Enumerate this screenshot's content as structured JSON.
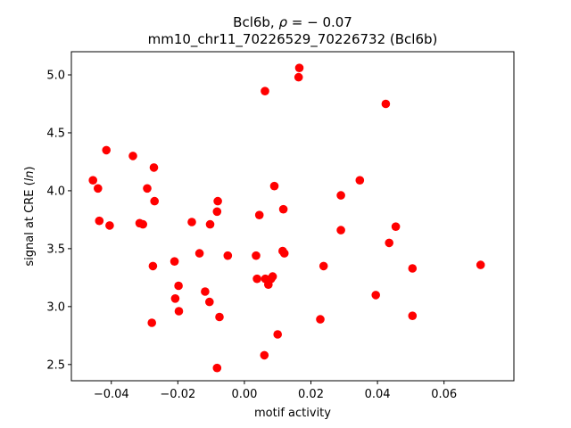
{
  "chart_data": {
    "type": "scatter",
    "title_line1_prefix": "Bcl6b, ",
    "title_line1_rho": "ρ",
    "title_line1_suffix": " = − 0.07",
    "title_line2": "mm10_chr11_70226529_70226732 (Bcl6b)",
    "xlabel": "motif activity",
    "ylabel_prefix": "signal at CRE (",
    "ylabel_italic": "ln",
    "ylabel_suffix": ")",
    "xlim": [
      -0.052,
      0.081
    ],
    "ylim": [
      2.36,
      5.2
    ],
    "x_ticks": [
      {
        "value": -0.04,
        "label": "−0.04"
      },
      {
        "value": -0.02,
        "label": "−0.02"
      },
      {
        "value": 0.0,
        "label": "0.00"
      },
      {
        "value": 0.02,
        "label": "0.02"
      },
      {
        "value": 0.04,
        "label": "0.04"
      },
      {
        "value": 0.06,
        "label": "0.06"
      }
    ],
    "y_ticks": [
      {
        "value": 2.5,
        "label": "2.5"
      },
      {
        "value": 3.0,
        "label": "3.0"
      },
      {
        "value": 3.5,
        "label": "3.5"
      },
      {
        "value": 4.0,
        "label": "4.0"
      },
      {
        "value": 4.5,
        "label": "4.5"
      },
      {
        "value": 5.0,
        "label": "5.0"
      }
    ],
    "grid": false,
    "marker_color": "#ff0000",
    "points": [
      {
        "x": -0.0455,
        "y": 4.09
      },
      {
        "x": -0.044,
        "y": 4.02
      },
      {
        "x": -0.0436,
        "y": 3.74
      },
      {
        "x": -0.0415,
        "y": 4.35
      },
      {
        "x": -0.0405,
        "y": 3.7
      },
      {
        "x": -0.0335,
        "y": 4.3
      },
      {
        "x": -0.0315,
        "y": 3.72
      },
      {
        "x": -0.0305,
        "y": 3.71
      },
      {
        "x": -0.0292,
        "y": 4.02
      },
      {
        "x": -0.0272,
        "y": 4.2
      },
      {
        "x": -0.027,
        "y": 3.91
      },
      {
        "x": -0.0275,
        "y": 3.35
      },
      {
        "x": -0.0278,
        "y": 2.86
      },
      {
        "x": -0.021,
        "y": 3.39
      },
      {
        "x": -0.0208,
        "y": 3.07
      },
      {
        "x": -0.0198,
        "y": 3.18
      },
      {
        "x": -0.0197,
        "y": 2.96
      },
      {
        "x": -0.0158,
        "y": 3.73
      },
      {
        "x": -0.0135,
        "y": 3.46
      },
      {
        "x": -0.0118,
        "y": 3.13
      },
      {
        "x": -0.0105,
        "y": 3.04
      },
      {
        "x": -0.0103,
        "y": 3.71
      },
      {
        "x": -0.0082,
        "y": 3.82
      },
      {
        "x": -0.008,
        "y": 3.91
      },
      {
        "x": -0.0075,
        "y": 2.91
      },
      {
        "x": -0.0082,
        "y": 2.47
      },
      {
        "x": -0.005,
        "y": 3.44
      },
      {
        "x": 0.0035,
        "y": 3.44
      },
      {
        "x": 0.0038,
        "y": 3.24
      },
      {
        "x": 0.0045,
        "y": 3.79
      },
      {
        "x": 0.0062,
        "y": 4.86
      },
      {
        "x": 0.0063,
        "y": 3.24
      },
      {
        "x": 0.006,
        "y": 2.58
      },
      {
        "x": 0.0072,
        "y": 3.19
      },
      {
        "x": 0.008,
        "y": 3.24
      },
      {
        "x": 0.0085,
        "y": 3.26
      },
      {
        "x": 0.009,
        "y": 4.04
      },
      {
        "x": 0.01,
        "y": 2.76
      },
      {
        "x": 0.0115,
        "y": 3.48
      },
      {
        "x": 0.0117,
        "y": 3.84
      },
      {
        "x": 0.012,
        "y": 3.46
      },
      {
        "x": 0.0165,
        "y": 5.06
      },
      {
        "x": 0.0163,
        "y": 4.98
      },
      {
        "x": 0.0228,
        "y": 2.89
      },
      {
        "x": 0.0238,
        "y": 3.35
      },
      {
        "x": 0.029,
        "y": 3.96
      },
      {
        "x": 0.029,
        "y": 3.66
      },
      {
        "x": 0.0347,
        "y": 4.09
      },
      {
        "x": 0.0395,
        "y": 3.1
      },
      {
        "x": 0.0425,
        "y": 4.75
      },
      {
        "x": 0.0435,
        "y": 3.55
      },
      {
        "x": 0.0455,
        "y": 3.69
      },
      {
        "x": 0.0505,
        "y": 3.33
      },
      {
        "x": 0.0505,
        "y": 2.92
      },
      {
        "x": 0.071,
        "y": 3.36
      }
    ]
  }
}
